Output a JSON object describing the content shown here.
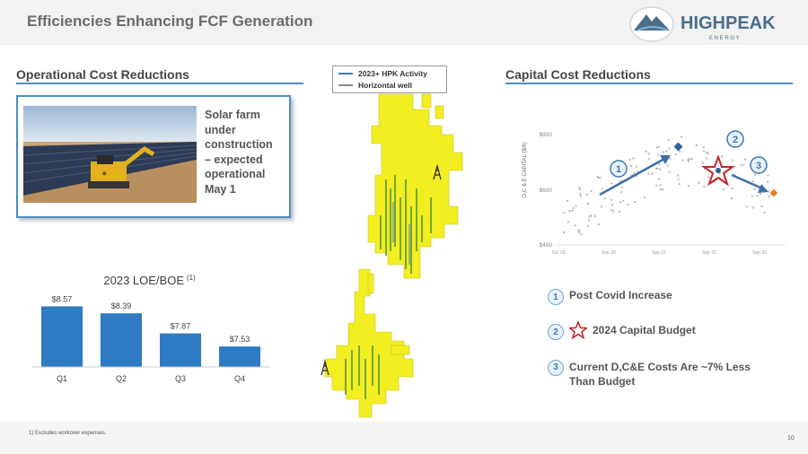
{
  "header": {
    "title": "Efficiencies Enhancing FCF Generation"
  },
  "logo": {
    "name": "HIGHPEAK",
    "sub": "E N E R G Y",
    "icon": "mountain-logo-icon"
  },
  "left": {
    "heading": "Operational Cost Reductions",
    "solar_caption": "Solar farm under construction – expected operational May 1"
  },
  "map_legend": {
    "items": [
      {
        "label": "2023+ HPK Activity",
        "color": "#4a78b8"
      },
      {
        "label": "Horizontal well",
        "color": "#8a8a8a"
      }
    ]
  },
  "right": {
    "heading": "Capital Cost Reductions",
    "bullets": [
      {
        "num": "1",
        "text": "Post Covid Increase"
      },
      {
        "num": "2",
        "text": "2024 Capital Budget"
      },
      {
        "num": "3",
        "text": "Current D,C&E Costs Are ~7% Less Than Budget"
      }
    ]
  },
  "chart_data": [
    {
      "type": "bar",
      "title": "2023 LOE/BOE",
      "title_sup": "(1)",
      "categories": [
        "Q1",
        "Q2",
        "Q3",
        "Q4"
      ],
      "values": [
        8.57,
        8.39,
        7.87,
        7.53
      ],
      "data_labels": [
        "$8.57",
        "$8.39",
        "$7.87",
        "$7.53"
      ],
      "ylim": [
        7.0,
        8.65
      ],
      "color": "#2e7bc4"
    },
    {
      "type": "scatter",
      "ylabel": "D,C & E CAPITAL ($/ft)",
      "y_ticks": [
        "$800",
        "$600",
        "$400"
      ],
      "x_ticks": [
        "Oct 19",
        "Sep 20",
        "Sep 21",
        "Sep 22",
        "Sep 23"
      ],
      "ylim": [
        400,
        900
      ],
      "markers": [
        {
          "label": "1",
          "desc": "Post Covid Increase"
        },
        {
          "label": "2",
          "desc": "2024 Capital Budget"
        },
        {
          "label": "3",
          "desc": "Current D,C&E Costs"
        }
      ],
      "colors": {
        "points": "#b8b8b8",
        "arrow": "#3f6fa8",
        "star": "#c0272d",
        "current": "#e07b2a"
      }
    }
  ],
  "footer": {
    "footnote": "1)    Excludes workover expenses.",
    "page": "10"
  }
}
